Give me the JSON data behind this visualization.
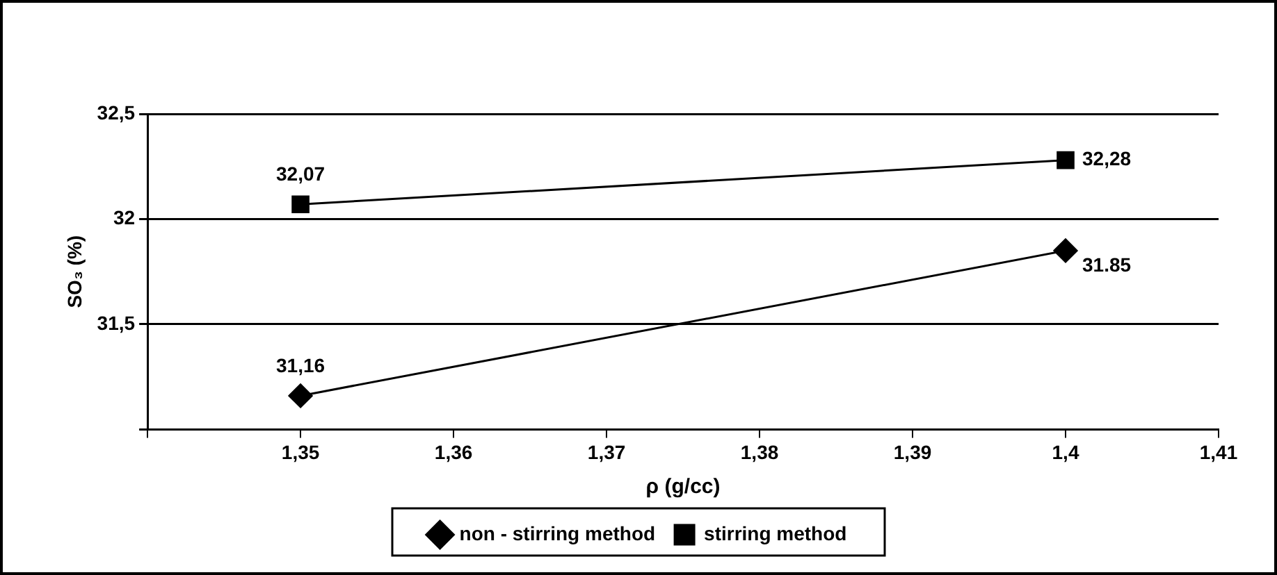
{
  "chart_data": {
    "type": "line",
    "xlabel": "ρ (g/cc)",
    "ylabel": "SO₃ (%)",
    "x": [
      1.35,
      1.4
    ],
    "series": [
      {
        "name": "non - stirring method",
        "color": "#000000",
        "marker": "diamond",
        "values": [
          31.16,
          31.85
        ],
        "value_labels": [
          "31,16",
          "31.85"
        ]
      },
      {
        "name": "stirring method",
        "color": "#000000",
        "marker": "square",
        "values": [
          32.07,
          32.28
        ],
        "value_labels": [
          "32,07",
          "32,28"
        ]
      }
    ],
    "xlim": [
      1.34,
      1.41
    ],
    "xticks": [
      {
        "value": 1.34,
        "label": null
      },
      {
        "value": 1.35,
        "label": "1,35"
      },
      {
        "value": 1.36,
        "label": "1,36"
      },
      {
        "value": 1.37,
        "label": "1,37"
      },
      {
        "value": 1.38,
        "label": "1,38"
      },
      {
        "value": 1.39,
        "label": "1,39"
      },
      {
        "value": 1.4,
        "label": "1,4"
      },
      {
        "value": 1.41,
        "label": "1,41"
      }
    ],
    "ylim": [
      31,
      32.5
    ],
    "yticks": [
      {
        "value": 31,
        "label": null
      },
      {
        "value": 31.5,
        "label": "31,5"
      },
      {
        "value": 32,
        "label": "32"
      },
      {
        "value": 32.5,
        "label": "32,5"
      }
    ],
    "grid": "y",
    "legend": "bottom",
    "line_style": "solid"
  }
}
